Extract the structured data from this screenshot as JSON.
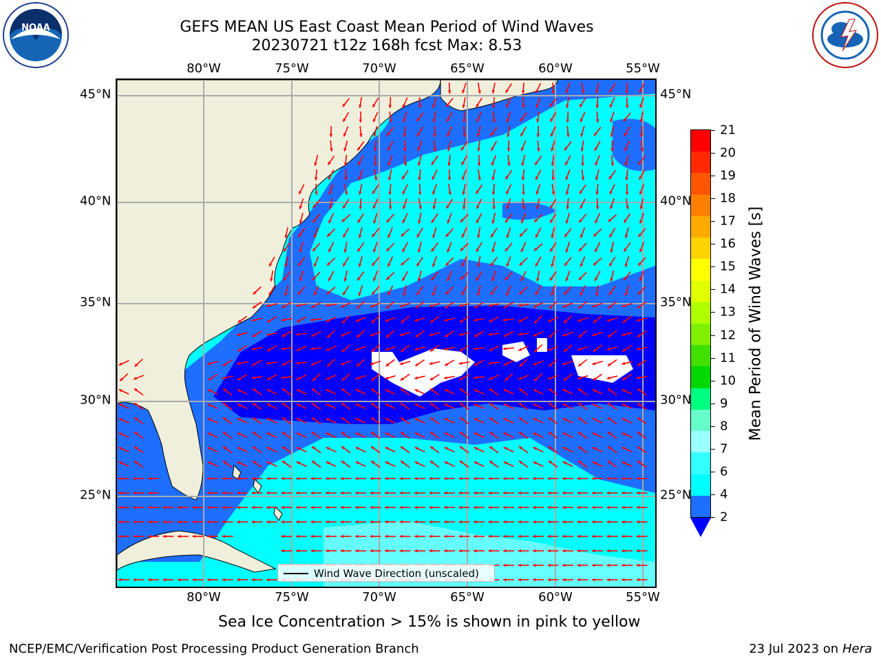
{
  "title_line1": "GEFS MEAN US East Coast Mean Period of Wind Waves",
  "title_line2": "20230721 t12z 168h fcst   Max: 8.53",
  "lon_ticks": [
    "80°W",
    "75°W",
    "70°W",
    "65°W",
    "60°W",
    "55°W"
  ],
  "lat_ticks": [
    "45°N",
    "40°N",
    "35°N",
    "30°N",
    "25°N"
  ],
  "legend_label": "Wind Wave Direction (unscaled)",
  "colorbar": {
    "label": "Mean Period of Wind Waves [s]",
    "ticks": [
      "21",
      "20",
      "19",
      "18",
      "17",
      "16",
      "15",
      "14",
      "13",
      "12",
      "11",
      "10",
      "9",
      "8",
      "7",
      "6",
      "4",
      "2"
    ],
    "colors": [
      "#ff0000",
      "#ff2a00",
      "#ff5500",
      "#ff8000",
      "#ffaa00",
      "#ffd400",
      "#ffff00",
      "#e0ff00",
      "#b0ff00",
      "#80f000",
      "#40e000",
      "#00d800",
      "#00ff7f",
      "#66ffcc",
      "#99ffff",
      "#33ffff",
      "#00ffff",
      "#1e6eff"
    ],
    "under_color": "#0000ff"
  },
  "subtitle": "Sea Ice Concentration > 15% is shown in pink to yellow",
  "footer_left": "NCEP/EMC/Verification Post Processing Product Generation Branch",
  "footer_date": "23 Jul 2023 on ",
  "footer_machine": "Hera",
  "colors": {
    "land": "#efefdc",
    "period_2_4": "#1e6eff",
    "period_lt_2": "#0000ff",
    "period_4_6": "#00ffff",
    "period_6_8": "#66ffff",
    "arrow": "#ff0000",
    "grid": "#aaaaaa"
  },
  "icons": {
    "left_logo": "noaa-logo",
    "right_logo": "nws-logo"
  }
}
